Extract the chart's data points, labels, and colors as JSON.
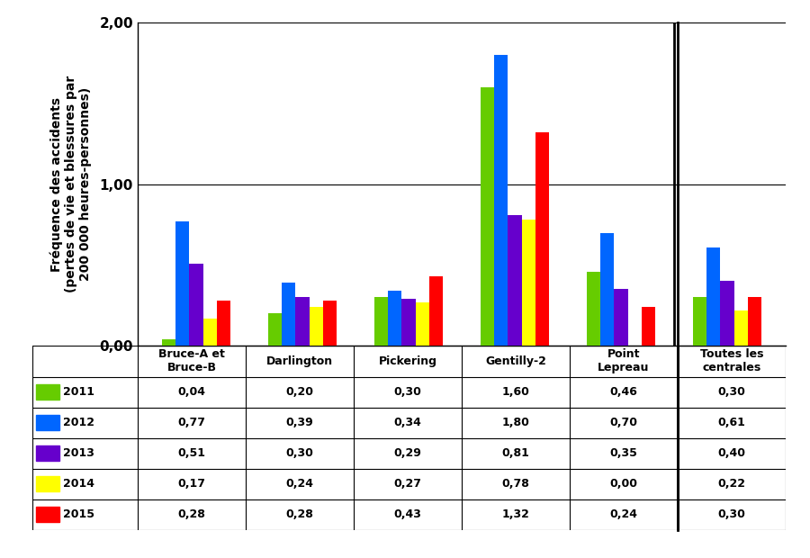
{
  "categories": [
    "Bruce-A et\nBruce-B",
    "Darlington",
    "Pickering",
    "Gentilly-2",
    "Point\nLepreau",
    "Toutes les\ncentrales"
  ],
  "years": [
    "2011",
    "2012",
    "2013",
    "2014",
    "2015"
  ],
  "colors": [
    "#66cc00",
    "#0066ff",
    "#6600cc",
    "#ffff00",
    "#ff0000"
  ],
  "values": {
    "2011": [
      0.04,
      0.2,
      0.3,
      1.6,
      0.46,
      0.3
    ],
    "2012": [
      0.77,
      0.39,
      0.34,
      1.8,
      0.7,
      0.61
    ],
    "2013": [
      0.51,
      0.3,
      0.29,
      0.81,
      0.35,
      0.4
    ],
    "2014": [
      0.17,
      0.24,
      0.27,
      0.78,
      0.0,
      0.22
    ],
    "2015": [
      0.28,
      0.28,
      0.43,
      1.32,
      0.24,
      0.3
    ]
  },
  "ylabel_line1": "Fréquence des accidents",
  "ylabel_line2": "(pertes de vie et blessures par",
  "ylabel_line3": "200 000 heures-personnes)",
  "ylim": [
    0.0,
    2.0
  ],
  "yticks": [
    0.0,
    1.0,
    2.0
  ],
  "ytick_labels": [
    "0,00",
    "1,00",
    "2,00"
  ],
  "table_values": [
    [
      "0,04",
      "0,20",
      "0,30",
      "1,60",
      "0,46",
      "0,30"
    ],
    [
      "0,77",
      "0,39",
      "0,34",
      "1,80",
      "0,70",
      "0,61"
    ],
    [
      "0,51",
      "0,30",
      "0,29",
      "0,81",
      "0,35",
      "0,40"
    ],
    [
      "0,17",
      "0,24",
      "0,27",
      "0,78",
      "0,00",
      "0,22"
    ],
    [
      "0,28",
      "0,28",
      "0,43",
      "1,32",
      "0,24",
      "0,30"
    ]
  ],
  "bar_width": 0.13
}
